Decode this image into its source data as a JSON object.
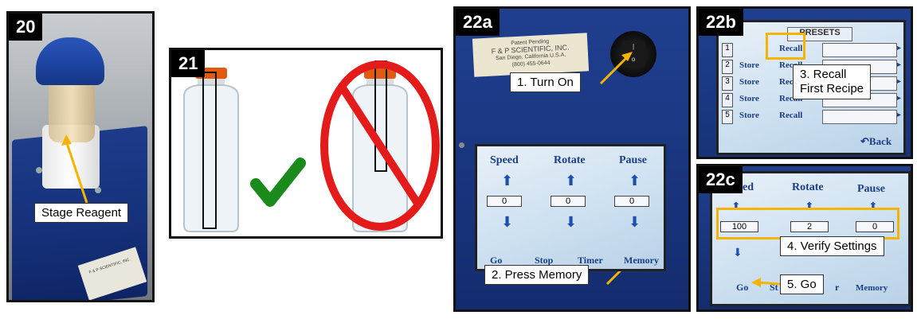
{
  "panels": {
    "p20": {
      "badge": "20",
      "callout": "Stage Reagent",
      "label_lines": [
        "F & P SCIENTIFIC, INC."
      ]
    },
    "p21": {
      "badge": "21"
    },
    "p22a": {
      "badge": "22a",
      "sticker_lines": [
        "Patent Pending",
        "F & P SCIENTIFIC, INC.",
        "San Diego, California U.S.A.",
        "(800) 455-0644"
      ],
      "callout_turn_on": "1. Turn On",
      "callout_press_memory": "2. Press Memory",
      "lcd": {
        "headers": [
          "Speed",
          "Rotate",
          "Pause"
        ],
        "values": [
          "0",
          "0",
          "0"
        ],
        "buttons": [
          "Go",
          "Stop",
          "Timer",
          "Memory"
        ]
      }
    },
    "p22b": {
      "badge": "22b",
      "title": "PRESETS",
      "rows": [
        {
          "num": "1",
          "store": "",
          "recall": "Recall"
        },
        {
          "num": "2",
          "store": "Store",
          "recall": "Recall"
        },
        {
          "num": "3",
          "store": "Store",
          "recall": "Recall"
        },
        {
          "num": "4",
          "store": "Store",
          "recall": "Recall"
        },
        {
          "num": "5",
          "store": "Store",
          "recall": "Recall"
        }
      ],
      "back": "Back",
      "callout": [
        "3. Recall",
        "First Recipe"
      ]
    },
    "p22c": {
      "badge": "22c",
      "headers": [
        "ed",
        "Rotate",
        "Pause"
      ],
      "values": [
        "100",
        "2",
        "0"
      ],
      "buttons": [
        "Go",
        "St",
        "r",
        "Memory"
      ],
      "callout_verify": "4. Verify Settings",
      "callout_go": "5. Go"
    }
  },
  "colors": {
    "accent": "#f5b400",
    "lcd_text": "#1b3f86",
    "device_blue": "#1f3f8f",
    "check_green": "#1a8a1a",
    "ban_red": "#e31b1b",
    "cap_orange": "#e05a12"
  }
}
